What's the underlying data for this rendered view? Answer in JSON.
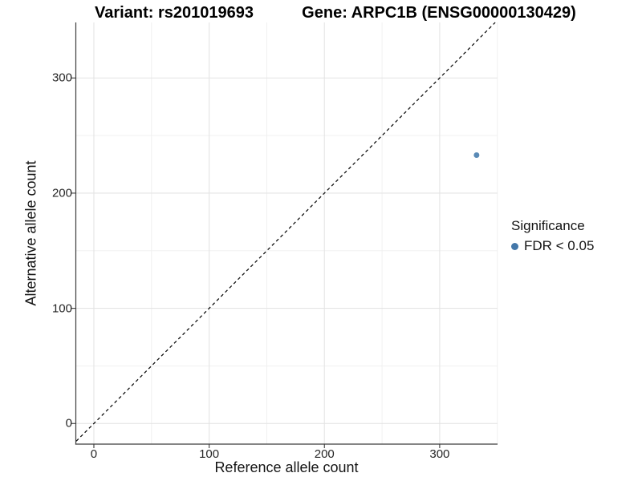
{
  "chart_data": {
    "type": "scatter",
    "titles": {
      "left": "Variant: rs201019693",
      "right": "Gene: ARPC1B (ENSG00000130429)"
    },
    "xlabel": "Reference allele count",
    "ylabel": "Alternative allele count",
    "xlim": [
      -15.3,
      350.2
    ],
    "ylim": [
      -17.9,
      348.2
    ],
    "x_ticks": [
      0,
      100,
      200,
      300
    ],
    "y_ticks": [
      0,
      100,
      200,
      300
    ],
    "x_minor_breaks": [
      50,
      150,
      250,
      350
    ],
    "y_minor_breaks": [
      50,
      150,
      250,
      350
    ],
    "grid": true,
    "series": [
      {
        "name": "FDR < 0.05",
        "color": "#4377a9",
        "points": [
          {
            "x": 332,
            "y": 233
          }
        ]
      }
    ],
    "reference_line": {
      "kind": "identity",
      "slope": 1,
      "intercept": 0,
      "style": "dashed",
      "color": "#000000"
    },
    "legend": {
      "position": "right",
      "title": "Significance",
      "items": [
        {
          "label": "FDR < 0.05",
          "color": "#4377a9"
        }
      ]
    },
    "colors": {
      "point": "#4c80b0",
      "axis_line": "#3c3c3c",
      "tick_label": "#262626",
      "grid_major": "#e4e4e4",
      "grid_minor": "#efefef",
      "background": "#ffffff",
      "dashed_line": "#000000"
    }
  }
}
